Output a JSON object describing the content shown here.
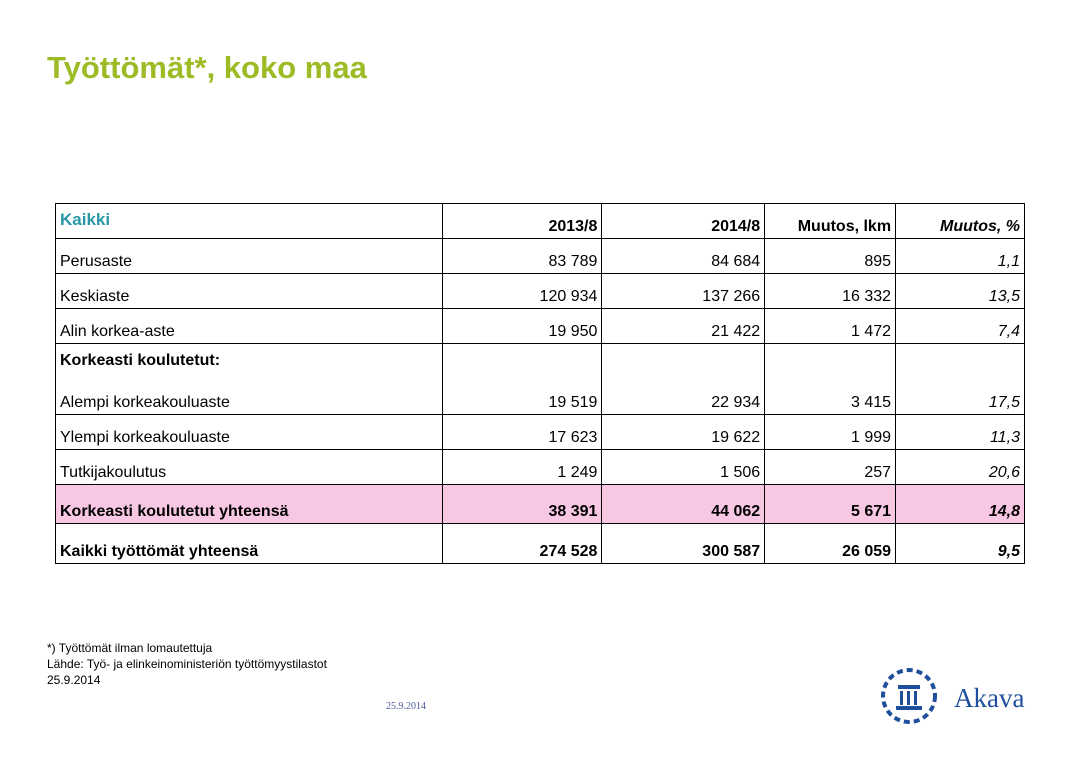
{
  "header": {
    "title": "Työttömät*, koko maa"
  },
  "table": {
    "columns": [
      "Kaikki",
      "2013/8",
      "2014/8",
      "Muutos, lkm",
      "Muutos, %"
    ],
    "rows": [
      [
        "Perusaste",
        "83 789",
        "84 684",
        "895",
        "1,1"
      ],
      [
        "Keskiaste",
        "120 934",
        "137 266",
        "16 332",
        "13,5"
      ],
      [
        "Alin korkea-aste",
        "19 950",
        "21 422",
        "1 472",
        "7,4"
      ],
      [
        "Korkeasti koulutetut:"
      ],
      [
        "Alempi korkeakouluaste",
        "19 519",
        "22 934",
        "3 415",
        "17,5"
      ],
      [
        "Ylempi korkeakouluaste",
        "17 623",
        "19 622",
        "1 999",
        "11,3"
      ],
      [
        "Tutkijakoulutus",
        "1 249",
        "1 506",
        "257",
        "20,6"
      ],
      [
        "Korkeasti koulutetut yhteensä",
        "38 391",
        "44 062",
        "5 671",
        "14,8"
      ],
      [
        "Kaikki työttömät yhteensä",
        "274 528",
        "300 587",
        "26 059",
        "9,5"
      ]
    ]
  },
  "footer": {
    "notes": [
      "*) Työttömät ilman lomautettuja",
      "Lähde: Työ- ja elinkeinoministeriön työttömyystilastot",
      "25.9.2014"
    ],
    "date": "25.9.2014",
    "logo": "Akava"
  }
}
